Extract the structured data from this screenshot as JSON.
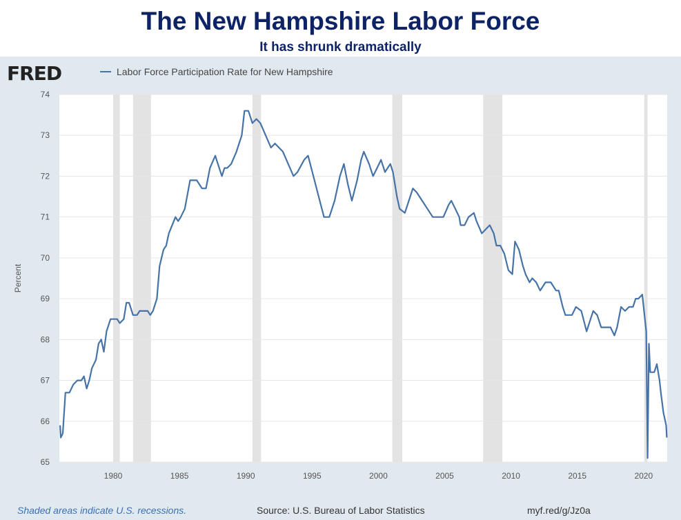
{
  "header": {
    "title": "The New Hampshire Labor Force",
    "subtitle": "It has shrunk dramatically"
  },
  "fred": {
    "logo": "FRED",
    "legend": "Labor Force Participation Rate for New Hampshire"
  },
  "footer": {
    "note": "Shaded areas indicate U.S. recessions.",
    "source": "Source: U.S. Bureau of Labor Statistics",
    "link": "myf.red/g/Jz0a"
  },
  "chart_data": {
    "type": "line",
    "title": "Labor Force Participation Rate for New Hampshire",
    "xlabel": "",
    "ylabel": "Percent",
    "xlim": [
      1976,
      2021.75
    ],
    "ylim": [
      65,
      74
    ],
    "xticks": [
      1980,
      1985,
      1990,
      1995,
      2000,
      2005,
      2010,
      2015,
      2020
    ],
    "yticks": [
      65,
      66,
      67,
      68,
      69,
      70,
      71,
      72,
      73,
      74
    ],
    "grid": true,
    "line_color": "#4572a7",
    "recessions": [
      [
        1980.0,
        1980.5
      ],
      [
        1981.5,
        1982.85
      ],
      [
        1990.5,
        1991.15
      ],
      [
        2001.05,
        2001.8
      ],
      [
        2007.9,
        2009.35
      ],
      [
        2020.05,
        2020.3
      ]
    ],
    "series": [
      {
        "name": "Labor Force Participation Rate for New Hampshire",
        "x": [
          1976.0,
          1976.05,
          1976.2,
          1976.4,
          1976.7,
          1977.0,
          1977.3,
          1977.6,
          1977.8,
          1978.0,
          1978.2,
          1978.4,
          1978.7,
          1978.9,
          1979.1,
          1979.3,
          1979.5,
          1979.8,
          1980.3,
          1980.5,
          1980.8,
          1981.0,
          1981.2,
          1981.5,
          1981.8,
          1982.0,
          1982.6,
          1982.8,
          1983.0,
          1983.3,
          1983.5,
          1983.8,
          1984.0,
          1984.2,
          1984.7,
          1984.9,
          1985.1,
          1985.4,
          1985.8,
          1986.3,
          1986.7,
          1987.0,
          1987.3,
          1987.7,
          1987.9,
          1988.2,
          1988.4,
          1988.6,
          1988.9,
          1989.3,
          1989.7,
          1989.9,
          1990.2,
          1990.5,
          1990.8,
          1991.1,
          1991.5,
          1991.9,
          1992.2,
          1992.5,
          1992.8,
          1993.2,
          1993.6,
          1993.9,
          1994.4,
          1994.7,
          1995.1,
          1995.5,
          1995.9,
          1996.3,
          1996.7,
          1997.1,
          1997.4,
          1997.7,
          1998.0,
          1998.4,
          1998.7,
          1998.9,
          1999.3,
          1999.6,
          1999.9,
          2000.2,
          2000.5,
          2000.9,
          2001.1,
          2001.4,
          2001.6,
          2002.0,
          2002.3,
          2002.6,
          2002.9,
          2003.3,
          2003.7,
          2004.1,
          2004.9,
          2005.3,
          2005.5,
          2005.8,
          2006.1,
          2006.2,
          2006.5,
          2006.8,
          2007.2,
          2007.4,
          2007.8,
          2008.1,
          2008.4,
          2008.7,
          2008.9,
          2009.2,
          2009.5,
          2009.8,
          2010.1,
          2010.3,
          2010.6,
          2010.9,
          2011.1,
          2011.4,
          2011.6,
          2011.9,
          2012.2,
          2012.6,
          2013.0,
          2013.4,
          2013.6,
          2013.9,
          2014.1,
          2014.6,
          2014.9,
          2015.3,
          2015.7,
          2016.0,
          2016.2,
          2016.5,
          2016.8,
          2017.5,
          2017.8,
          2018.0,
          2018.3,
          2018.6,
          2018.9,
          2019.2,
          2019.4,
          2019.6,
          2019.9,
          2020.0,
          2020.2,
          2020.3,
          2020.4,
          2020.5,
          2020.8,
          2021.0,
          2021.2,
          2021.3,
          2021.5,
          2021.7,
          2021.75
        ],
        "y": [
          65.9,
          65.6,
          65.7,
          66.7,
          66.7,
          66.9,
          67.0,
          67.0,
          67.1,
          66.8,
          67.0,
          67.3,
          67.5,
          67.9,
          68.0,
          67.7,
          68.2,
          68.5,
          68.5,
          68.4,
          68.5,
          68.9,
          68.9,
          68.6,
          68.6,
          68.7,
          68.7,
          68.6,
          68.7,
          69.0,
          69.8,
          70.2,
          70.3,
          70.6,
          71.0,
          70.9,
          71.0,
          71.2,
          71.9,
          71.9,
          71.7,
          71.7,
          72.2,
          72.5,
          72.3,
          72.0,
          72.2,
          72.2,
          72.3,
          72.6,
          73.0,
          73.6,
          73.6,
          73.3,
          73.4,
          73.3,
          73.0,
          72.7,
          72.8,
          72.7,
          72.6,
          72.3,
          72.0,
          72.1,
          72.4,
          72.5,
          72.0,
          71.5,
          71.0,
          71.0,
          71.4,
          72.0,
          72.3,
          71.8,
          71.4,
          71.9,
          72.4,
          72.6,
          72.3,
          72.0,
          72.2,
          72.4,
          72.1,
          72.3,
          72.1,
          71.5,
          71.2,
          71.1,
          71.4,
          71.7,
          71.6,
          71.4,
          71.2,
          71.0,
          71.0,
          71.3,
          71.4,
          71.2,
          71.0,
          70.8,
          70.8,
          71.0,
          71.1,
          70.9,
          70.6,
          70.7,
          70.8,
          70.6,
          70.3,
          70.3,
          70.1,
          69.7,
          69.6,
          70.4,
          70.2,
          69.8,
          69.6,
          69.4,
          69.5,
          69.4,
          69.2,
          69.4,
          69.4,
          69.2,
          69.2,
          68.8,
          68.6,
          68.6,
          68.8,
          68.7,
          68.2,
          68.5,
          68.7,
          68.6,
          68.3,
          68.3,
          68.1,
          68.3,
          68.8,
          68.7,
          68.8,
          68.8,
          69.0,
          69.0,
          69.1,
          68.8,
          68.2,
          65.1,
          67.9,
          67.2,
          67.2,
          67.4,
          67.0,
          66.7,
          66.2,
          65.9,
          65.6
        ]
      }
    ]
  }
}
